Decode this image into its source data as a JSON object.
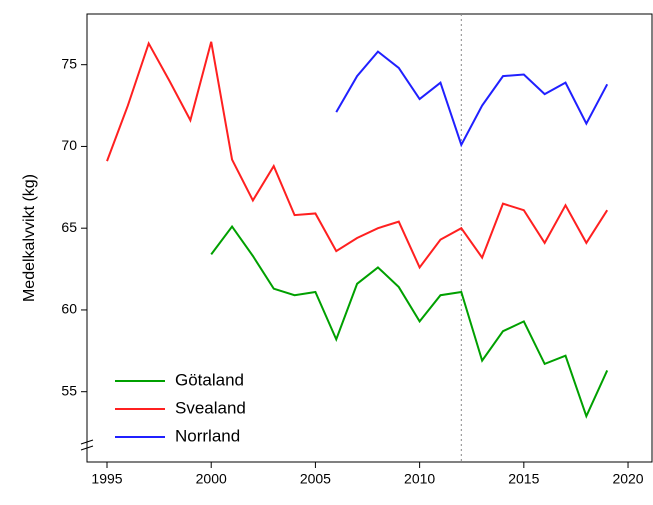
{
  "chart_data": {
    "type": "line",
    "y_label": "Medelkalvvikt (kg)",
    "x": [
      1995,
      1996,
      1997,
      1998,
      1999,
      2000,
      2001,
      2002,
      2003,
      2004,
      2005,
      2006,
      2007,
      2008,
      2009,
      2010,
      2011,
      2012,
      2013,
      2014,
      2015,
      2016,
      2017,
      2018,
      2019
    ],
    "series": [
      {
        "name": "Götaland",
        "color": "#00a000",
        "values": [
          null,
          null,
          null,
          null,
          null,
          63.4,
          65.1,
          63.3,
          61.3,
          60.9,
          61.1,
          58.2,
          61.6,
          62.6,
          61.4,
          59.3,
          60.9,
          61.1,
          56.9,
          58.7,
          59.3,
          56.7,
          57.2,
          53.5,
          56.3
        ]
      },
      {
        "name": "Svealand",
        "color": "#ff2020",
        "values": [
          69.1,
          72.5,
          76.3,
          74.0,
          71.6,
          76.4,
          69.2,
          66.7,
          68.8,
          65.8,
          65.9,
          63.6,
          64.4,
          65.0,
          65.4,
          62.6,
          64.3,
          65.0,
          63.2,
          66.5,
          66.1,
          64.1,
          66.4,
          64.1,
          66.1
        ]
      },
      {
        "name": "Norrland",
        "color": "#2020ff",
        "values": [
          null,
          null,
          null,
          null,
          null,
          null,
          null,
          null,
          null,
          null,
          null,
          72.1,
          74.3,
          75.8,
          74.8,
          72.9,
          73.9,
          70.1,
          72.5,
          74.3,
          74.4,
          73.2,
          73.9,
          71.4,
          73.8
        ]
      }
    ],
    "xlim": [
      1994.04,
      2021.15
    ],
    "xticks": [
      1995,
      2000,
      2005,
      2010,
      2015,
      2020
    ],
    "ylim": [
      50.7,
      78.1
    ],
    "yticks": [
      55,
      60,
      65,
      70,
      75
    ],
    "reference_line_x": 2012,
    "legend": "lower-left"
  }
}
